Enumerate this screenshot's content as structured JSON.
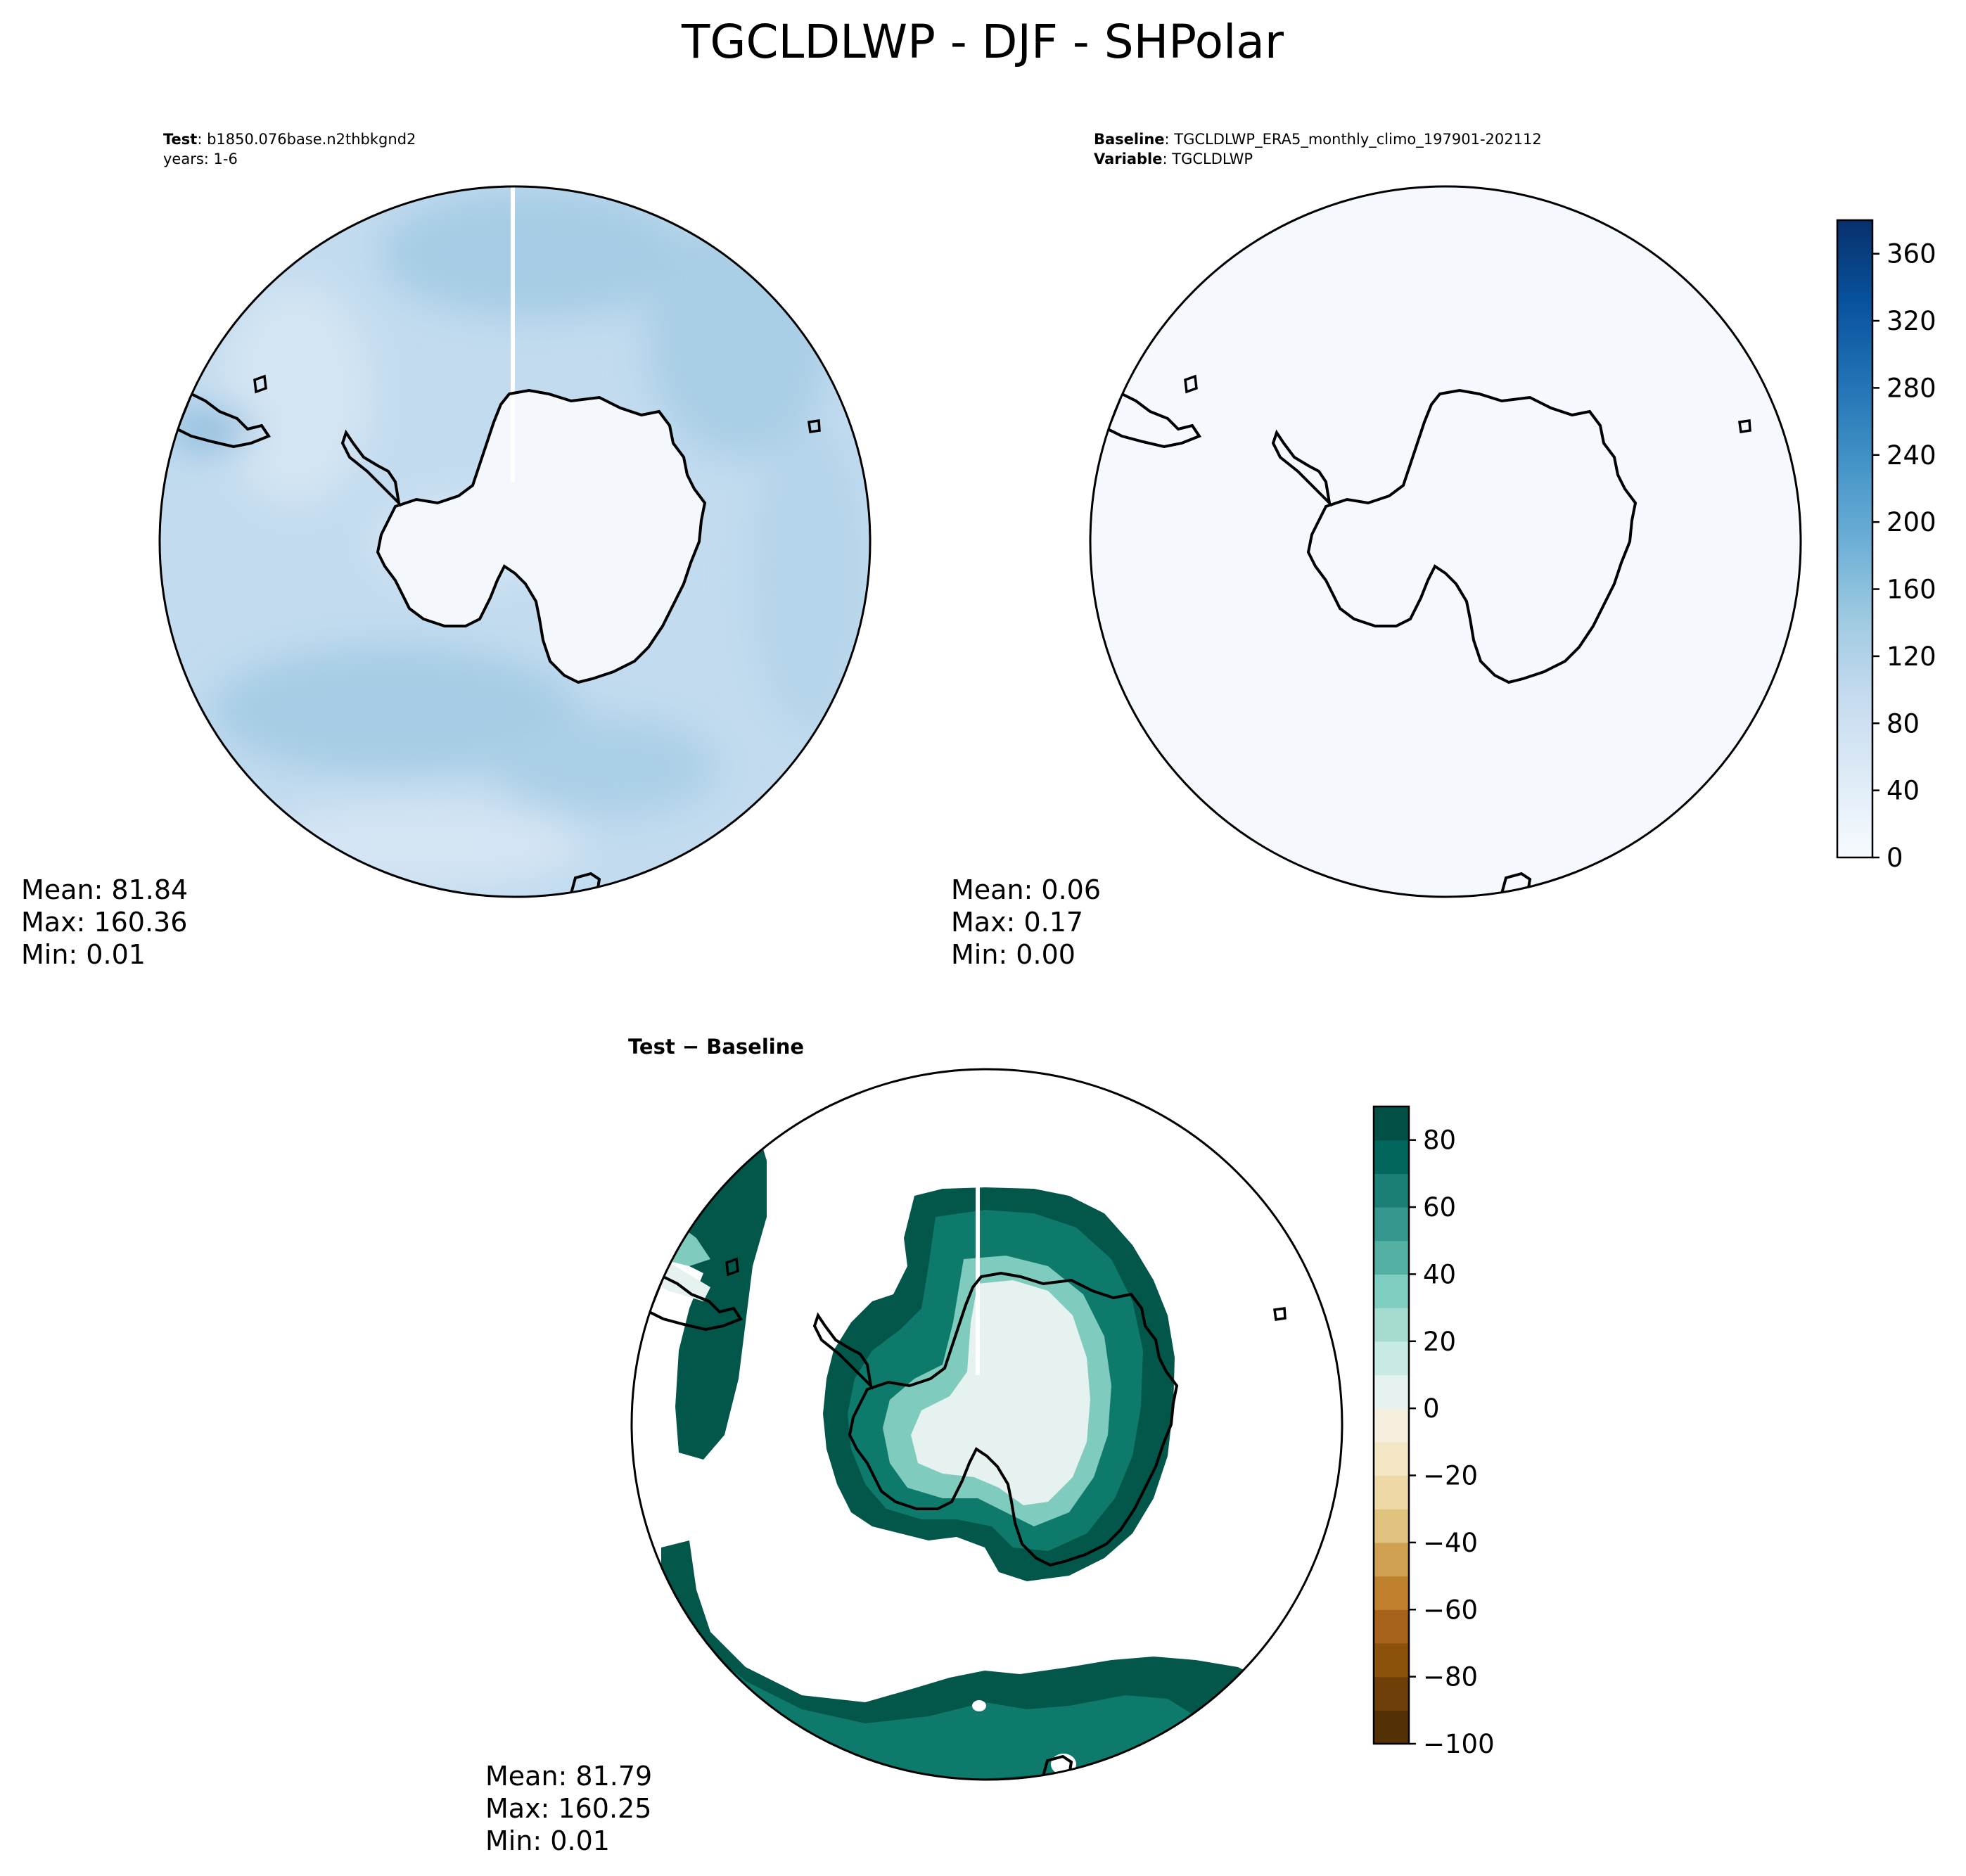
{
  "figure": {
    "title": "TGCLDLWP - DJF - SHPolar"
  },
  "colors": {
    "test_map_base": "#c2dbef",
    "test_map_dark": "#a5cce4",
    "test_map_light": "#ddeaf6",
    "continent_fill": "#f4f8fd",
    "baseline_fill": "#f5f9fe",
    "diff_dark": "#02574a",
    "diff_mid": "#0e7a6c",
    "diff_light": "#7fcbbd",
    "diff_pale": "#e6f2ef",
    "coast": "#000000"
  },
  "chart_data": [
    {
      "type": "heatmap",
      "panel": "test",
      "header_key": "Test",
      "header_value": ": b1850.076base.n2thbkgnd2",
      "header_line2": "years: 1-6",
      "stats": {
        "mean": "Mean: 81.84",
        "max": "Max: 160.36",
        "min": "Min:  0.01"
      },
      "projection": "south-polar-stereographic",
      "colormap": "Blues"
    },
    {
      "type": "heatmap",
      "panel": "baseline",
      "header_key": "Baseline",
      "header_value": ": TGCLDLWP_ERA5_monthly_climo_197901-202112",
      "header_key2": "Variable",
      "header_value2": ": TGCLDLWP",
      "stats": {
        "mean": "Mean:  0.06",
        "max": "Max:  0.17",
        "min": "Min:  0.00"
      },
      "projection": "south-polar-stereographic",
      "colormap": "Blues",
      "colorbar": {
        "ticks": [
          "0",
          "40",
          "80",
          "120",
          "160",
          "200",
          "240",
          "280",
          "320",
          "360"
        ],
        "tick_values": [
          0,
          40,
          80,
          120,
          160,
          200,
          240,
          280,
          320,
          360
        ],
        "range": [
          0,
          380
        ],
        "stops": [
          "#f7fbff",
          "#deebf7",
          "#c6dbef",
          "#9ecae1",
          "#6baed6",
          "#4292c6",
          "#2171b5",
          "#08519c",
          "#08306b"
        ]
      }
    },
    {
      "type": "heatmap",
      "panel": "difference",
      "title": "Test − Baseline",
      "stats": {
        "mean": "Mean: 81.79",
        "max": "Max: 160.25",
        "min": "Min:  0.01"
      },
      "projection": "south-polar-stereographic",
      "colormap": "BrBG",
      "colorbar": {
        "ticks": [
          "−100",
          "−80",
          "−60",
          "−40",
          "−20",
          "0",
          "20",
          "40",
          "60",
          "80"
        ],
        "tick_values": [
          -100,
          -80,
          -60,
          -40,
          -20,
          0,
          20,
          40,
          60,
          80
        ],
        "range": [
          -100,
          90
        ],
        "levels": [
          {
            "from": -100,
            "to": -90,
            "color": "#543005"
          },
          {
            "from": -90,
            "to": -80,
            "color": "#6f3f09"
          },
          {
            "from": -80,
            "to": -70,
            "color": "#8c510a"
          },
          {
            "from": -70,
            "to": -60,
            "color": "#a6611a"
          },
          {
            "from": -60,
            "to": -50,
            "color": "#bf812d"
          },
          {
            "from": -50,
            "to": -40,
            "color": "#cfa052"
          },
          {
            "from": -40,
            "to": -30,
            "color": "#dfc27d"
          },
          {
            "from": -30,
            "to": -20,
            "color": "#eed9a6"
          },
          {
            "from": -20,
            "to": -10,
            "color": "#f3e6c4"
          },
          {
            "from": -10,
            "to": 0,
            "color": "#f6efde"
          },
          {
            "from": 0,
            "to": 10,
            "color": "#e6f2ef"
          },
          {
            "from": 10,
            "to": 20,
            "color": "#c7eae5"
          },
          {
            "from": 20,
            "to": 30,
            "color": "#a6dbd0"
          },
          {
            "from": 30,
            "to": 40,
            "color": "#80cdc1"
          },
          {
            "from": 40,
            "to": 50,
            "color": "#55b0a4"
          },
          {
            "from": 50,
            "to": 60,
            "color": "#35978f"
          },
          {
            "from": 60,
            "to": 70,
            "color": "#1a8075"
          },
          {
            "from": 70,
            "to": 80,
            "color": "#01665e"
          },
          {
            "from": 80,
            "to": 90,
            "color": "#014f45"
          }
        ]
      }
    }
  ]
}
